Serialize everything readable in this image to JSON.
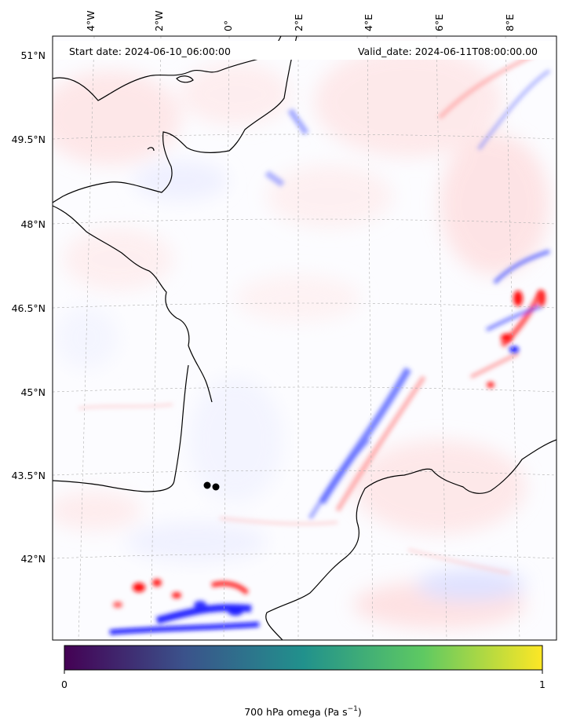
{
  "header": {
    "start_date": "Start date: 2024-06-10_06:00:00",
    "valid_date": "Valid_date: 2024-06-11T08:00:00.00"
  },
  "lon_ticks": [
    "4°W",
    "2°W",
    "0°",
    "2°E",
    "4°E",
    "6°E",
    "8°E"
  ],
  "lat_ticks": [
    "51°N",
    "49.5°N",
    "48°N",
    "46.5°N",
    "45°N",
    "43.5°N",
    "42°N"
  ],
  "colorbar": {
    "min_label": "0",
    "max_label": "1",
    "label": "700 hPa omega (Pa s",
    "label_sup": "−1",
    "label_end": ")",
    "colormap": "viridis",
    "stops": [
      "#440154",
      "#3b528b",
      "#21918c",
      "#5ec962",
      "#fde725"
    ]
  },
  "field_colors": {
    "negative": "#1a1aff",
    "positive": "#ff1a1a",
    "neutral": "#ffffff",
    "coastline": "#000000",
    "markers": "#000000"
  }
}
